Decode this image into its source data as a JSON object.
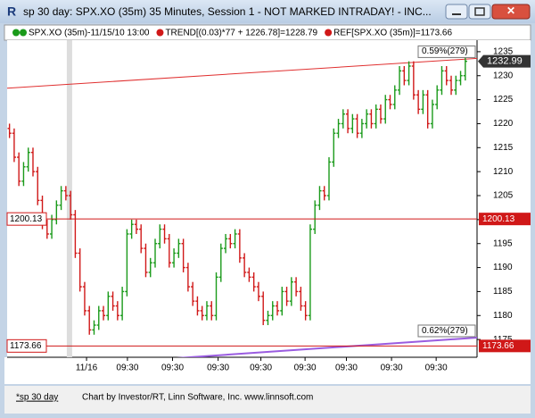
{
  "window": {
    "title": "sp 30 day: SPX.XO (35m) 35 Minutes, Session 1 - NOT MARKED INTRADAY! - INC..."
  },
  "legend": [
    "SPX.XO (35m)-11/15/10 13:00",
    "TREND[(0.03)*77 + 1226.78]=1228.79",
    "REF[SPX.XO (35m)]=1173.66"
  ],
  "chart": {
    "ylim": [
      1171.3,
      1237.4
    ],
    "yticks": [
      1175,
      1180,
      1185,
      1190,
      1195,
      1200,
      1205,
      1210,
      1215,
      1220,
      1225,
      1230,
      1235
    ],
    "xlim": [
      0,
      100
    ],
    "xticks": [
      {
        "value": 16.9,
        "label": "11/16"
      },
      {
        "value": 25.6,
        "label": "09:30"
      },
      {
        "value": 35.2,
        "label": "09:30"
      },
      {
        "value": 44.9,
        "label": "09:30"
      },
      {
        "value": 54,
        "label": "09:30"
      },
      {
        "value": 63.4,
        "label": "09:30"
      },
      {
        "value": 72.2,
        "label": "09:30"
      },
      {
        "value": 81.8,
        "label": "09:30"
      },
      {
        "value": 91.3,
        "label": "09:30"
      }
    ],
    "up_color": "#1a9a1a",
    "down_color": "#d01818",
    "bars": [
      [
        1219,
        1220,
        1217,
        1218
      ],
      [
        1218,
        1219,
        1212,
        1213
      ],
      [
        1213,
        1214,
        1207,
        1208
      ],
      [
        1208,
        1212,
        1207,
        1211
      ],
      [
        1211,
        1215,
        1210,
        1214
      ],
      [
        1214,
        1215,
        1209,
        1210
      ],
      [
        1210,
        1211,
        1203,
        1204
      ],
      [
        1204,
        1205,
        1198,
        1199
      ],
      [
        1199,
        1200,
        1196,
        1197
      ],
      [
        1197,
        1201,
        1196,
        1200
      ],
      [
        1200,
        1204,
        1199,
        1203
      ],
      [
        1203,
        1207,
        1202,
        1206
      ],
      [
        1206,
        1207,
        1204,
        1205
      ],
      [
        1205,
        1206,
        1200,
        1201
      ],
      [
        1201,
        1202,
        1192,
        1193
      ],
      [
        1193,
        1194,
        1185,
        1186
      ],
      [
        1186,
        1187,
        1180,
        1181
      ],
      [
        1181,
        1182,
        1176,
        1177
      ],
      [
        1177,
        1179,
        1176,
        1178
      ],
      [
        1178,
        1182,
        1177,
        1181
      ],
      [
        1181,
        1182,
        1179,
        1180
      ],
      [
        1180,
        1185,
        1179,
        1184
      ],
      [
        1184,
        1185,
        1181,
        1182
      ],
      [
        1182,
        1183,
        1179,
        1180
      ],
      [
        1180,
        1186,
        1179,
        1185
      ],
      [
        1185,
        1198,
        1184,
        1197
      ],
      [
        1197,
        1200,
        1196,
        1199
      ],
      [
        1199,
        1200,
        1197,
        1198
      ],
      [
        1198,
        1199,
        1193,
        1194
      ],
      [
        1194,
        1195,
        1188,
        1189
      ],
      [
        1189,
        1192,
        1188,
        1191
      ],
      [
        1191,
        1196,
        1190,
        1195
      ],
      [
        1195,
        1199,
        1194,
        1198
      ],
      [
        1198,
        1199,
        1195,
        1196
      ],
      [
        1196,
        1197,
        1190,
        1191
      ],
      [
        1191,
        1194,
        1190,
        1193
      ],
      [
        1193,
        1196,
        1192,
        1195
      ],
      [
        1195,
        1196,
        1189,
        1190
      ],
      [
        1190,
        1191,
        1185,
        1186
      ],
      [
        1186,
        1187,
        1182,
        1183
      ],
      [
        1183,
        1184,
        1180,
        1181
      ],
      [
        1181,
        1182,
        1179,
        1180
      ],
      [
        1180,
        1183,
        1179,
        1182
      ],
      [
        1182,
        1183,
        1179,
        1180
      ],
      [
        1180,
        1189,
        1179,
        1188
      ],
      [
        1188,
        1195,
        1187,
        1194
      ],
      [
        1194,
        1197,
        1193,
        1196
      ],
      [
        1196,
        1197,
        1194,
        1195
      ],
      [
        1195,
        1198,
        1194,
        1197
      ],
      [
        1197,
        1198,
        1191,
        1192
      ],
      [
        1192,
        1193,
        1188,
        1189
      ],
      [
        1189,
        1190,
        1187,
        1188
      ],
      [
        1188,
        1189,
        1185,
        1186
      ],
      [
        1186,
        1187,
        1183,
        1184
      ],
      [
        1184,
        1185,
        1178,
        1179
      ],
      [
        1179,
        1181,
        1178,
        1180
      ],
      [
        1180,
        1183,
        1179,
        1182
      ],
      [
        1182,
        1183,
        1180,
        1181
      ],
      [
        1181,
        1186,
        1180,
        1185
      ],
      [
        1185,
        1186,
        1182,
        1183
      ],
      [
        1183,
        1188,
        1182,
        1187
      ],
      [
        1187,
        1188,
        1184,
        1185
      ],
      [
        1185,
        1186,
        1181,
        1182
      ],
      [
        1182,
        1183,
        1179,
        1180
      ],
      [
        1180,
        1199,
        1179,
        1198
      ],
      [
        1198,
        1204,
        1197,
        1203
      ],
      [
        1203,
        1207,
        1202,
        1206
      ],
      [
        1206,
        1207,
        1204,
        1205
      ],
      [
        1205,
        1213,
        1204,
        1212
      ],
      [
        1212,
        1219,
        1211,
        1218
      ],
      [
        1218,
        1221,
        1217,
        1220
      ],
      [
        1220,
        1223,
        1219,
        1222
      ],
      [
        1222,
        1223,
        1218,
        1219
      ],
      [
        1219,
        1222,
        1218,
        1221
      ],
      [
        1221,
        1222,
        1217,
        1218
      ],
      [
        1218,
        1221,
        1217,
        1220
      ],
      [
        1220,
        1223,
        1219,
        1222
      ],
      [
        1222,
        1223,
        1219,
        1220
      ],
      [
        1220,
        1224,
        1219,
        1223
      ],
      [
        1223,
        1224,
        1220,
        1221
      ],
      [
        1221,
        1226,
        1220,
        1225
      ],
      [
        1225,
        1226,
        1223,
        1224
      ],
      [
        1224,
        1228,
        1223,
        1227
      ],
      [
        1227,
        1232,
        1226,
        1231
      ],
      [
        1231,
        1232,
        1228,
        1229
      ],
      [
        1229,
        1233,
        1228,
        1232
      ],
      [
        1232,
        1233,
        1225,
        1226
      ],
      [
        1226,
        1227,
        1222,
        1223
      ],
      [
        1223,
        1227,
        1222,
        1226
      ],
      [
        1226,
        1227,
        1219,
        1220
      ],
      [
        1220,
        1225,
        1219,
        1224
      ],
      [
        1224,
        1228,
        1223,
        1227
      ],
      [
        1227,
        1232,
        1226,
        1231
      ],
      [
        1231,
        1232,
        1228,
        1229
      ],
      [
        1229,
        1230,
        1226,
        1227
      ],
      [
        1227,
        1230,
        1226,
        1229
      ],
      [
        1229,
        1231,
        1228,
        1230
      ],
      [
        1230,
        1234,
        1229,
        1233
      ]
    ],
    "trend_lines": [
      {
        "color": "#e03030",
        "start": [
          0,
          1227.4
        ],
        "end": [
          100,
          1233.6
        ],
        "label": "0.59%(279)"
      },
      {
        "color": "#9a5ce0",
        "start": [
          0,
          1168.7
        ],
        "end": [
          100,
          1175.4
        ],
        "label": "0.62%(279)"
      }
    ],
    "levels": [
      {
        "value": 1200.13,
        "label": "1200.13",
        "color": "#d01818"
      },
      {
        "value": 1173.66,
        "label": "1173.66",
        "color": "#d01818"
      }
    ],
    "last_price": {
      "value": 1232.99,
      "label": "1232.99"
    },
    "session_band": 12.7
  },
  "footer": {
    "tab": "*sp 30 day",
    "credit": "Chart by Investor/RT, Linn Software, Inc. www.linnsoft.com"
  }
}
